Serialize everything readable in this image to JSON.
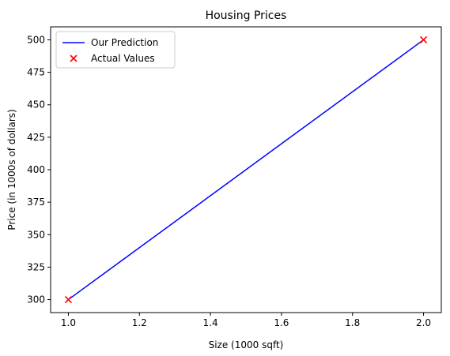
{
  "chart_data": {
    "type": "line",
    "title": "Housing Prices",
    "xlabel": "Size (1000 sqft)",
    "ylabel": "Price (in 1000s of dollars)",
    "xlim": [
      0.95,
      2.05
    ],
    "ylim": [
      290,
      510
    ],
    "xticks": [
      1.0,
      1.2,
      1.4,
      1.6,
      1.8,
      2.0
    ],
    "xtick_labels": [
      "1.0",
      "1.2",
      "1.4",
      "1.6",
      "1.8",
      "2.0"
    ],
    "yticks": [
      300,
      325,
      350,
      375,
      400,
      425,
      450,
      475,
      500
    ],
    "ytick_labels": [
      "300",
      "325",
      "350",
      "375",
      "400",
      "425",
      "450",
      "475",
      "500"
    ],
    "grid": false,
    "legend_position": "top-left",
    "series": [
      {
        "name": "Our Prediction",
        "kind": "line",
        "color": "#0000ff",
        "x": [
          1.0,
          2.0
        ],
        "y": [
          300,
          500
        ]
      },
      {
        "name": "Actual Values",
        "kind": "scatter",
        "marker": "x",
        "color": "#ff0000",
        "x": [
          1.0,
          2.0
        ],
        "y": [
          300,
          500
        ]
      }
    ]
  }
}
